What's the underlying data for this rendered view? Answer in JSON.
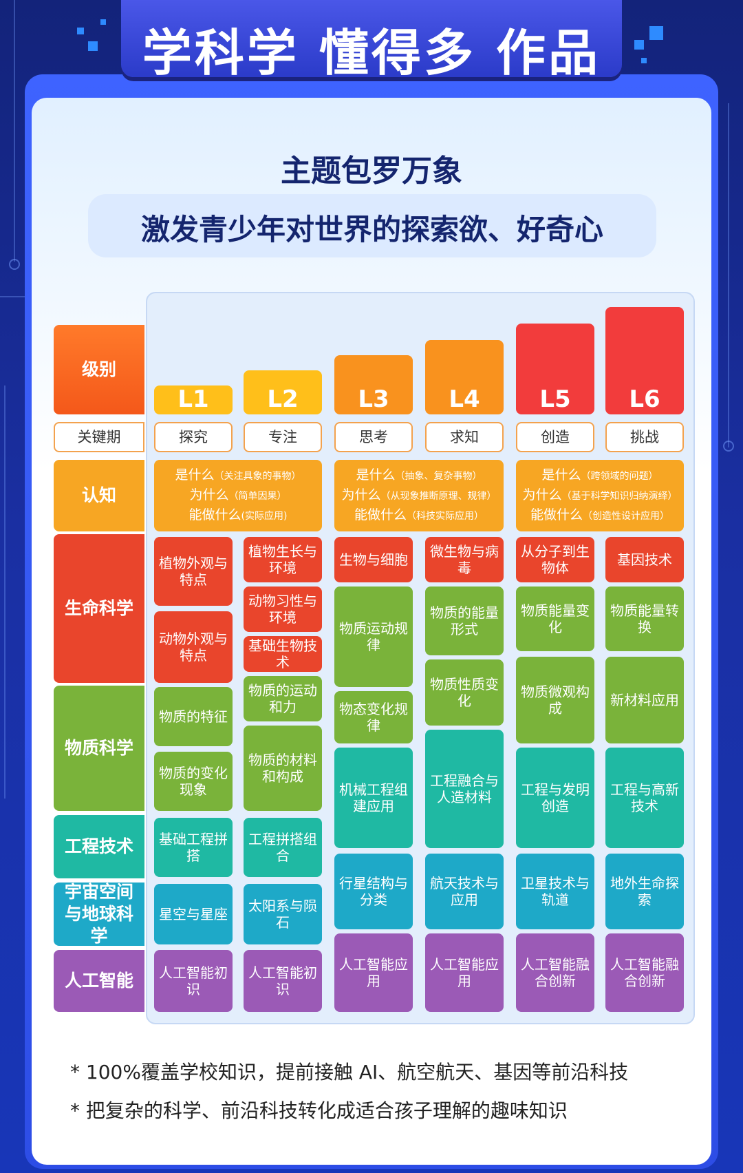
{
  "title": "学科学 懂得多 作品多",
  "headline": "主题包罗万象",
  "subheadline": "激发青少年对世界的探索欲、好奇心",
  "colors": {
    "orange": "#f7a623",
    "red": "#e9452c",
    "green": "#7ab33a",
    "teal": "#1fb9a3",
    "cyan": "#1ea9c8",
    "purple": "#9b5ab6",
    "level_red": "#f23c3c"
  },
  "row_labels": {
    "level": "级别",
    "keyword": "关键期",
    "cognition": "认知",
    "life": "生命科学",
    "matter": "物质科学",
    "engineering": "工程技术",
    "space": "宇宙空间与地球科学",
    "ai": "人工智能"
  },
  "levels": [
    "L1",
    "L2",
    "L3",
    "L4",
    "L5",
    "L6"
  ],
  "keywords": [
    "探究",
    "专注",
    "思考",
    "求知",
    "创造",
    "挑战"
  ],
  "cognition": [
    {
      "l1": "是什么",
      "s1": "（关注具象的事物）",
      "l2": "为什么",
      "s2": "（简单因果）",
      "l3": "能做什么",
      "s3": "(实际应用)"
    },
    {
      "l1": "是什么",
      "s1": "（抽象、复杂事物）",
      "l2": "为什么",
      "s2": "（从现象推断原理、规律）",
      "l3": "能做什么",
      "s3": "（科技实际应用）"
    },
    {
      "l1": "是什么",
      "s1": "（跨领域的问题）",
      "l2": "为什么",
      "s2": "（基于科学知识归纳演绎）",
      "l3": "能做什么",
      "s3": "（创造性设计应用）"
    }
  ],
  "topics": {
    "c1": [
      "植物外观与特点",
      "动物外观与特点",
      "物质的特征",
      "物质的变化现象",
      "基础工程拼搭",
      "星空与星座",
      "人工智能初识"
    ],
    "c2": [
      "植物生长与环境",
      "动物习性与环境",
      "基础生物技术",
      "物质的运动和力",
      "物质的材料和构成",
      "工程拼搭组合",
      "太阳系与陨石",
      "人工智能初识"
    ],
    "c3": [
      "生物与细胞",
      "物质运动规律",
      "物态变化规律",
      "机械工程组建应用",
      "行星结构与分类",
      "人工智能应用"
    ],
    "c4": [
      "微生物与病毒",
      "物质的能量形式",
      "物质性质变化",
      "工程融合与人造材料",
      "航天技术与应用",
      "人工智能应用"
    ],
    "c5": [
      "从分子到生物体",
      "物质能量变化",
      "物质微观构成",
      "工程与发明创造",
      "卫星技术与轨道",
      "人工智能融合创新"
    ],
    "c6": [
      "基因技术",
      "物质能量转换",
      "新材料应用",
      "工程与高新技术",
      "地外生命探索",
      "人工智能融合创新"
    ]
  },
  "notes": [
    "* 100%覆盖学校知识，提前接触 AI、航空航天、基因等前沿科技",
    "* 把复杂的科学、前沿科技转化成适合孩子理解的趣味知识"
  ]
}
